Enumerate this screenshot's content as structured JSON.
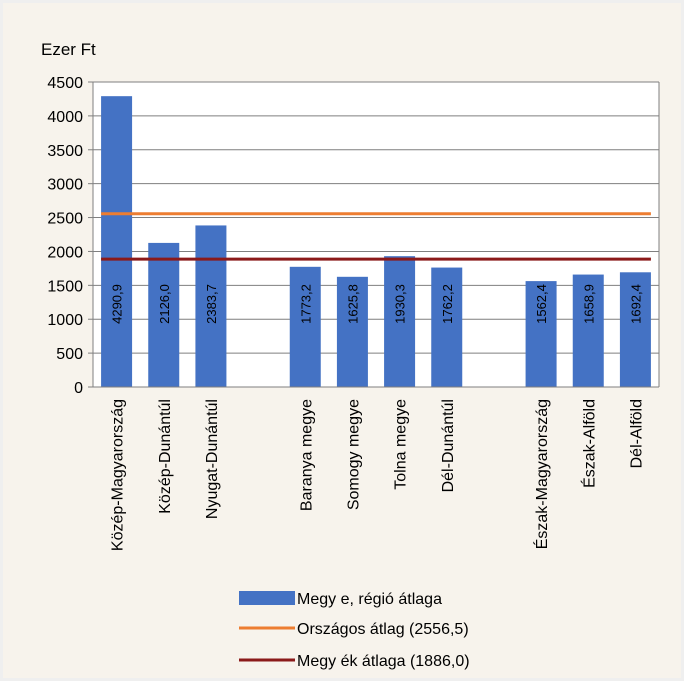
{
  "chart_data": {
    "type": "bar",
    "unit_label": "Ezer Ft",
    "ylim": [
      0,
      4500
    ],
    "yticks": [
      0,
      500,
      1000,
      1500,
      2000,
      2500,
      3000,
      3500,
      4000,
      4500
    ],
    "grid": true,
    "legend_position": "bottom",
    "categories": [
      "Közép-Magyarország",
      "Közép-Dunántúl",
      "Nyugat-Dunántúl",
      "",
      "Baranya megye",
      "Somogy megye",
      "Tolna megye",
      "Dél-Dunántúl",
      "",
      "Észak-Magyarország",
      "Észak-Alföld",
      "Dél-Alföld"
    ],
    "series": [
      {
        "name": "Megy e, régió átlaga",
        "values": [
          4290.9,
          2126.0,
          2383.7,
          null,
          1773.2,
          1625.8,
          1930.3,
          1762.2,
          null,
          1562.4,
          1658.9,
          1692.4
        ],
        "labels": [
          "4290,9",
          "2126,0",
          "2383,7",
          "",
          "1773,2",
          "1625,8",
          "1930,3",
          "1762,2",
          "",
          "1562,4",
          "1658,9",
          "1692,4"
        ],
        "color": "#4472c4"
      }
    ],
    "reference_lines": [
      {
        "name": "Országos átlag (2556,5)",
        "value": 2556.5,
        "color": "#ed7d31"
      },
      {
        "name": "Megy ék átlaga (1886,0)",
        "value": 1886.0,
        "color": "#8b1a1a"
      }
    ]
  }
}
